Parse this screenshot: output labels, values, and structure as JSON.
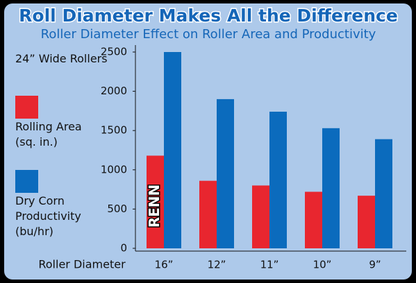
{
  "chart_data": {
    "type": "bar",
    "title": "Roll Diameter Makes All the Difference",
    "subtitle": "Roller Diameter Effect on Roller Area and Productivity",
    "legend_title": "24” Wide Rollers",
    "x_label": "Roller Diameter",
    "annotation": "RENN",
    "categories": [
      "16”",
      "12”",
      "11”",
      "10”",
      "9”"
    ],
    "series": [
      {
        "name": "Rolling Area (sq. in.)",
        "color": "#e8262f",
        "values": [
          1180,
          860,
          800,
          720,
          670
        ]
      },
      {
        "name": "Dry Corn Productivity (bu/hr)",
        "color": "#0b6bbd",
        "values": [
          2500,
          1900,
          1740,
          1530,
          1390
        ]
      }
    ],
    "ylim": [
      0,
      2500
    ],
    "yticks": [
      0,
      500,
      1000,
      1500,
      2000,
      2500
    ],
    "grid": false,
    "legend_position": "left"
  }
}
